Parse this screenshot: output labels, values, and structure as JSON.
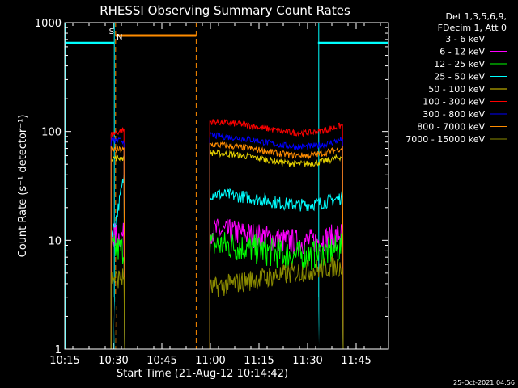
{
  "chart_data": {
    "type": "line",
    "title": "RHESSI Observing Summary Count Rates",
    "xlabel": "Start Time (21-Aug-12 10:14:42)",
    "ylabel": "Count Rate (s⁻¹ detector⁻¹)",
    "yscale": "log",
    "ylim": [
      1,
      1000
    ],
    "xlim_minutes": [
      0,
      100
    ],
    "x_ticks": [
      {
        "label": "10:15",
        "min": 0
      },
      {
        "label": "10:30",
        "min": 15
      },
      {
        "label": "10:45",
        "min": 30
      },
      {
        "label": "11:00",
        "min": 45
      },
      {
        "label": "11:15",
        "min": 60
      },
      {
        "label": "11:30",
        "min": 75
      },
      {
        "label": "11:45",
        "min": 90
      }
    ],
    "y_ticks": [
      {
        "label": "1",
        "value": 1
      },
      {
        "label": "10",
        "value": 10
      },
      {
        "label": "100",
        "value": 100
      },
      {
        "label": "1000",
        "value": 1000
      }
    ],
    "legend_header": [
      "Det 1,3,5,6,9,",
      "FDecim 1, Att 0"
    ],
    "data_segments": [
      [
        14.3,
        18.5
      ],
      [
        44.8,
        86.0
      ]
    ],
    "series": [
      {
        "name": "3 - 6 keV",
        "color": "#000000",
        "level": 1.7,
        "noise": 0.6
      },
      {
        "name": "6 - 12 keV",
        "color": "#ff00ff",
        "level": 11.0,
        "noise": 0.12
      },
      {
        "name": "12 - 25 keV",
        "color": "#00ff00",
        "level": 8.2,
        "noise": 0.14
      },
      {
        "name": "25 - 50 keV",
        "color": "#00ffff",
        "level": 24.0,
        "noise": 0.06
      },
      {
        "name": "50 - 100 keV",
        "color": "#e6d200",
        "level": 57.0,
        "noise": 0.03
      },
      {
        "name": "100 - 300 keV",
        "color": "#ff0000",
        "level": 110.0,
        "noise": 0.03
      },
      {
        "name": "300 - 800 keV",
        "color": "#0000ff",
        "level": 82.0,
        "noise": 0.03
      },
      {
        "name": "800 - 7000 keV",
        "color": "#ff8c00",
        "level": 68.0,
        "noise": 0.03
      },
      {
        "name": "7000 - 15000 keV",
        "color": "#8b8b00",
        "level": 4.5,
        "noise": 0.1
      }
    ],
    "saa_periods": [
      [
        0,
        15.3
      ],
      [
        78.2,
        100
      ]
    ],
    "saa_level": 650,
    "night_periods": [
      [
        15.7,
        40.6
      ]
    ],
    "night_level": 760,
    "flag_labels": {
      "saa": "S",
      "night": "N"
    },
    "colors": {
      "background": "#000000",
      "axis": "#ffffff",
      "saa": "#00ffff",
      "night": "#ff8c00"
    }
  },
  "footer": {
    "timestamp": "25-Oct-2021 04:56"
  }
}
